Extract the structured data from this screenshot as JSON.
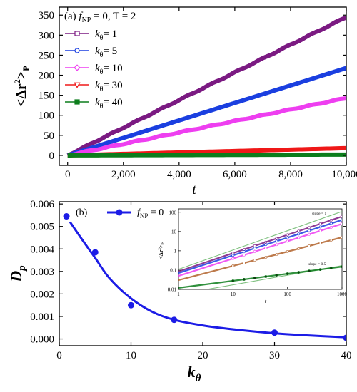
{
  "colors": {
    "purple": "#7b1a82",
    "blue": "#1a3fe0",
    "magenta": "#ee3ef0",
    "red": "#ef1818",
    "green": "#0c7d1c",
    "panel_b": "#1c1ce6",
    "inset_green": "#7fc07f",
    "inset_brown": "#b2632c",
    "inset_pink": "#f199ee"
  },
  "chart_data": [
    {
      "panel": "a",
      "type": "line",
      "panel_label": "(a)",
      "title_f": "f",
      "title_f_sub": "NP",
      "title_rest": " = 0, T = 2",
      "xlabel": "t",
      "ylabel": "<Δr²>P",
      "ylabel_parts": {
        "open": "<Δr",
        "sup": "2",
        "close": ">",
        "sub": "P"
      },
      "xlim": [
        -300,
        10000
      ],
      "ylim": [
        -25,
        370
      ],
      "xticks": [
        0,
        2000,
        4000,
        6000,
        8000,
        10000
      ],
      "xtick_labels": [
        "0",
        "2,000",
        "4,000",
        "6,000",
        "8,000",
        "10,000"
      ],
      "yticks": [
        0,
        50,
        100,
        150,
        200,
        250,
        300,
        350
      ],
      "ytick_labels": [
        "0",
        "50",
        "100",
        "150",
        "200",
        "250",
        "300",
        "350"
      ],
      "grid": false,
      "legend_position": "upper-left",
      "series": [
        {
          "name": "kθ= 1",
          "legend_k": "k",
          "legend_sub": "θ",
          "legend_rest": "= 1",
          "color_key": "purple",
          "marker": "square-open",
          "slope": 0.0345,
          "x": [
            0,
            10000
          ],
          "y": [
            0,
            345
          ]
        },
        {
          "name": "kθ= 5",
          "legend_k": "k",
          "legend_sub": "θ",
          "legend_rest": "= 5",
          "color_key": "blue",
          "marker": "circle-open",
          "slope": 0.0218,
          "x": [
            0,
            10000
          ],
          "y": [
            0,
            218
          ]
        },
        {
          "name": "kθ= 10",
          "legend_k": "k",
          "legend_sub": "θ",
          "legend_rest": "= 10",
          "color_key": "magenta",
          "marker": "diamond-open",
          "slope": 0.0143,
          "x": [
            0,
            10000
          ],
          "y": [
            0,
            143
          ]
        },
        {
          "name": "kθ= 30",
          "legend_k": "k",
          "legend_sub": "θ",
          "legend_rest": "= 30",
          "color_key": "red",
          "marker": "triangle-down-open",
          "slope": 0.0018,
          "x": [
            0,
            10000
          ],
          "y": [
            0,
            18
          ]
        },
        {
          "name": "kθ= 40",
          "legend_k": "k",
          "legend_sub": "θ",
          "legend_rest": "= 40",
          "color_key": "green",
          "marker": "square-filled",
          "slope": 0.0002,
          "x": [
            0,
            10000
          ],
          "y": [
            0,
            2
          ]
        }
      ]
    },
    {
      "panel": "b",
      "type": "scatter",
      "panel_label": "(b)",
      "xlabel": "kθ",
      "xlabel_parts": {
        "k": "k",
        "sub": "θ"
      },
      "ylabel": "Dp",
      "ylabel_parts": {
        "D": "D",
        "sub": "p"
      },
      "xlim": [
        0,
        40
      ],
      "ylim": [
        -0.0003,
        0.0061
      ],
      "xticks": [
        0,
        10,
        20,
        30,
        40
      ],
      "xtick_labels": [
        "0",
        "10",
        "20",
        "30",
        "40"
      ],
      "yticks": [
        0,
        0.001,
        0.002,
        0.003,
        0.004,
        0.005,
        0.006
      ],
      "ytick_labels": [
        "0.000",
        "0.001",
        "0.002",
        "0.003",
        "0.004",
        "0.005",
        "0.006"
      ],
      "grid": false,
      "legend_position": "upper-left",
      "legend": {
        "f": "f",
        "sub": "NP",
        "rest": " = 0"
      },
      "series": [
        {
          "name": "fNP = 0",
          "color_key": "panel_b",
          "x": [
            1,
            5,
            10,
            16,
            30,
            40
          ],
          "y": [
            0.00545,
            0.00385,
            0.0015,
            0.00085,
            0.00028,
            5e-05
          ]
        }
      ],
      "fit_curve": {
        "x": [
          1.5,
          3,
          5,
          7,
          10,
          13,
          16,
          20,
          25,
          30,
          35,
          40
        ],
        "y": [
          0.0052,
          0.0045,
          0.0036,
          0.0027,
          0.0018,
          0.0012,
          0.00085,
          0.0006,
          0.0004,
          0.00025,
          0.00015,
          7e-05
        ]
      },
      "inset": {
        "type": "line",
        "xlabel": "t",
        "ylabel": "<Δr²>P",
        "ylabel_parts": {
          "open": "<Δr",
          "sup": "2",
          "close": ">",
          "sub": "P"
        },
        "x_scale": "log",
        "y_scale": "log",
        "xlim": [
          1,
          1000
        ],
        "ylim": [
          0.01,
          150
        ],
        "xticks": [
          1,
          10,
          100,
          1000
        ],
        "xtick_labels": [
          "1",
          "10",
          "100",
          "1000"
        ],
        "yticks": [
          0.01,
          0.1,
          1,
          10,
          100
        ],
        "ytick_labels": [
          "0.01",
          "0.1",
          "1",
          "10",
          "100"
        ],
        "annotations": [
          "slope = 1",
          "slope = 0.5"
        ],
        "series": [
          {
            "color_key": "purple",
            "x": [
              1,
              1000
            ],
            "y": [
              0.085,
              60
            ]
          },
          {
            "color_key": "blue",
            "x": [
              1,
              1000
            ],
            "y": [
              0.07,
              40
            ]
          },
          {
            "color_key": "magenta",
            "x": [
              1,
              1000
            ],
            "y": [
              0.05,
              25
            ]
          },
          {
            "color_key": "inset_brown",
            "x": [
              1,
              1000
            ],
            "y": [
              0.03,
              5
            ]
          },
          {
            "color_key": "green",
            "x": [
              1,
              1000
            ],
            "y": [
              0.012,
              0.15
            ]
          }
        ],
        "reference_lines": [
          {
            "label": "slope = 1",
            "color_key": "inset_green",
            "x": [
              1,
              1000
            ],
            "y": [
              0.11,
              110
            ]
          },
          {
            "label": "slope = 0.5",
            "color_key": "inset_green",
            "x": [
              1,
              1000
            ],
            "y": [
              0.0055,
              0.17
            ]
          }
        ]
      }
    }
  ]
}
